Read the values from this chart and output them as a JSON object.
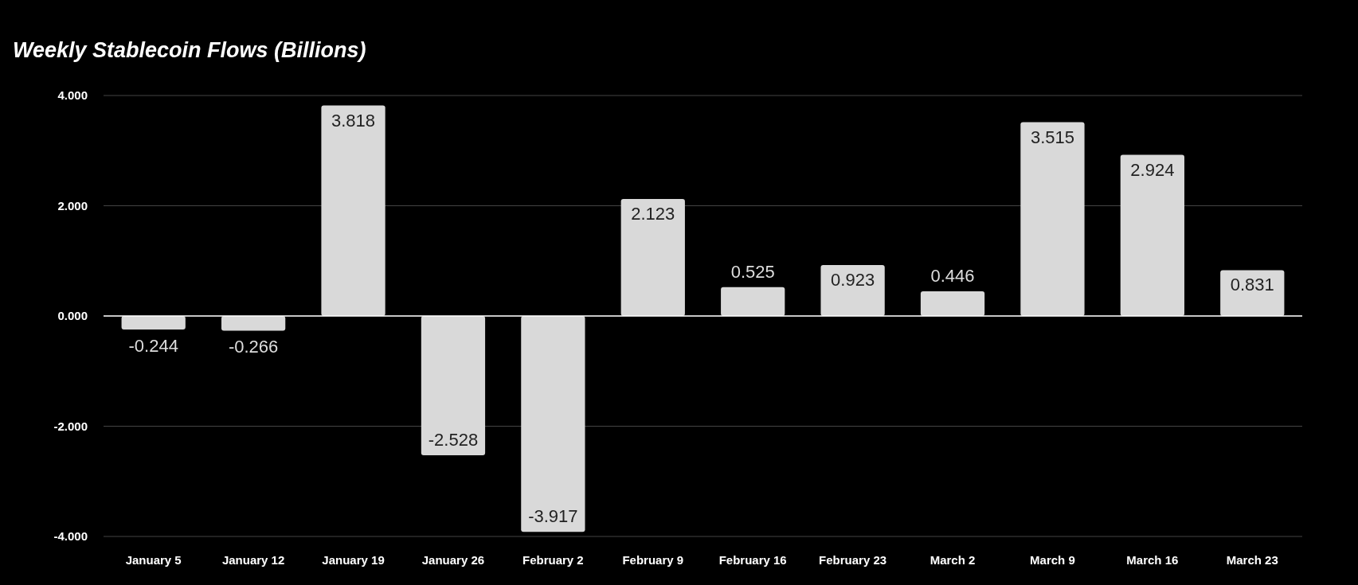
{
  "chart_data": {
    "type": "bar",
    "title": "Weekly Stablecoin Flows (Billions)",
    "categories": [
      "January 5",
      "January 12",
      "January 19",
      "January 26",
      "February 2",
      "February 9",
      "February 16",
      "February 23",
      "March 2",
      "March 9",
      "March 16",
      "March 23"
    ],
    "values": [
      -0.244,
      -0.266,
      3.818,
      -2.528,
      -3.917,
      2.123,
      0.525,
      0.923,
      0.446,
      3.515,
      2.924,
      0.831
    ],
    "color": "#d9d9d9",
    "ylim": [
      -4,
      4
    ],
    "yticks": [
      {
        "value": -4,
        "label": "-4.000"
      },
      {
        "value": -2,
        "label": "-2.000"
      },
      {
        "value": 0,
        "label": "0.000"
      },
      {
        "value": 2,
        "label": "2.000"
      },
      {
        "value": 4,
        "label": "4.000"
      }
    ],
    "grid": "y",
    "data_labels": true
  }
}
